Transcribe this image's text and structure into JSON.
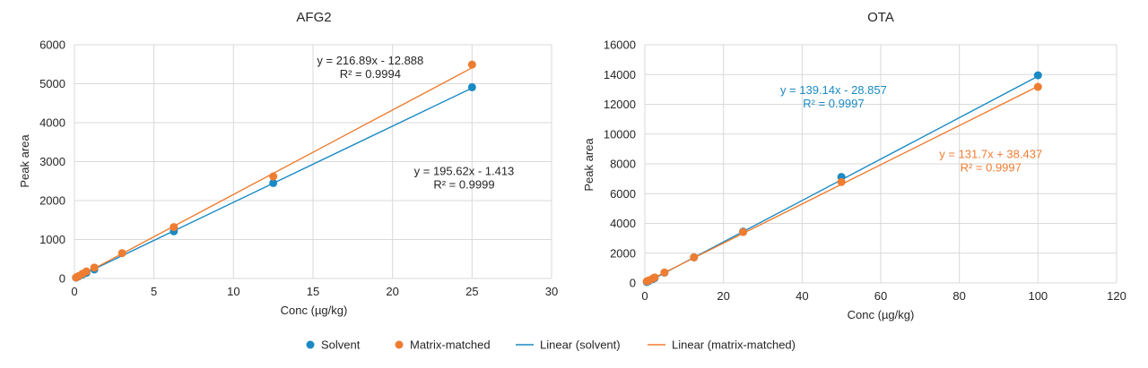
{
  "colors": {
    "solvent": "#1a8ac4",
    "matrix": "#ee7d31",
    "grid": "#d9d9d9"
  },
  "legend": [
    {
      "label": "Solvent",
      "kind": "marker",
      "series": "solvent"
    },
    {
      "label": "Matrix-matched",
      "kind": "marker",
      "series": "matrix"
    },
    {
      "label": "Linear (solvent)",
      "kind": "line",
      "series": "solvent"
    },
    {
      "label": "Linear (matrix-matched)",
      "kind": "line",
      "series": "matrix"
    }
  ],
  "chart_data": [
    {
      "type": "scatter",
      "title": "AFG2",
      "xlabel": "Conc (µg/kg)",
      "ylabel": "Peak area",
      "xlim": [
        0,
        30
      ],
      "ylim": [
        0,
        6000
      ],
      "xticks": [
        0,
        5,
        10,
        15,
        20,
        25,
        30
      ],
      "yticks": [
        0,
        1000,
        2000,
        3000,
        4000,
        5000,
        6000
      ],
      "xtick_labels": [
        "0",
        "5",
        "10",
        "15",
        "20",
        "25",
        "30"
      ],
      "ytick_labels": [
        "0",
        "1000",
        "2000",
        "3000",
        "4000",
        "5000",
        "6000"
      ],
      "grid": true,
      "series": [
        {
          "key": "solvent",
          "x": [
            0.1,
            0.25,
            0.5,
            0.75,
            1.25,
            6.25,
            12.5,
            25
          ],
          "y": [
            20,
            50,
            100,
            145,
            230,
            1210,
            2450,
            4910
          ],
          "fit": {
            "slope": 195.62,
            "intercept": -1.413
          }
        },
        {
          "key": "matrix",
          "x": [
            0.1,
            0.25,
            0.5,
            0.75,
            1.25,
            3,
            6.25,
            12.5,
            25
          ],
          "y": [
            25,
            60,
            120,
            180,
            280,
            650,
            1320,
            2620,
            5490
          ],
          "fit": {
            "slope": 216.89,
            "intercept": -12.888
          }
        }
      ],
      "annotations": [
        {
          "series": "matrix",
          "lines": [
            "y = 216.89x - 12.888",
            "R² = 0.9994"
          ],
          "at": [
            18.6,
            5500
          ]
        },
        {
          "series": "solvent",
          "lines": [
            "y = 195.62x - 1.413",
            "R² = 0.9999"
          ],
          "at": [
            24.5,
            2650
          ]
        }
      ]
    },
    {
      "type": "scatter",
      "title": "OTA",
      "xlabel": "Conc (µg/kg)",
      "ylabel": "Peak area",
      "xlim": [
        0,
        120
      ],
      "ylim": [
        0,
        16000
      ],
      "xticks": [
        0,
        20,
        40,
        60,
        80,
        100,
        120
      ],
      "yticks": [
        0,
        2000,
        4000,
        6000,
        8000,
        10000,
        12000,
        14000,
        16000
      ],
      "xtick_labels": [
        "0",
        "20",
        "40",
        "60",
        "80",
        "100",
        "120"
      ],
      "ytick_labels": [
        "0",
        "2000",
        "4000",
        "6000",
        "8000",
        "10000",
        "12000",
        "14000",
        "16000"
      ],
      "grid": true,
      "series": [
        {
          "key": "solvent",
          "x": [
            0.5,
            1,
            2,
            2.5,
            5,
            12.5,
            25,
            50,
            100
          ],
          "y": [
            60,
            130,
            260,
            330,
            690,
            1720,
            3450,
            7120,
            13950
          ],
          "fit": {
            "slope": 139.14,
            "intercept": -28.857
          }
        },
        {
          "key": "matrix",
          "x": [
            0.5,
            1,
            2,
            2.5,
            5,
            12.5,
            25,
            50,
            100
          ],
          "y": [
            110,
            170,
            300,
            370,
            700,
            1720,
            3420,
            6780,
            13170
          ],
          "fit": {
            "slope": 131.7,
            "intercept": 38.437
          }
        }
      ],
      "annotations": [
        {
          "series": "solvent",
          "lines": [
            "y = 139.14x - 28.857",
            "R² = 0.9997"
          ],
          "at": [
            48,
            12700
          ]
        },
        {
          "series": "matrix",
          "lines": [
            "y = 131.7x + 38.437",
            "R² = 0.9997"
          ],
          "at": [
            88,
            8400
          ]
        }
      ]
    }
  ]
}
